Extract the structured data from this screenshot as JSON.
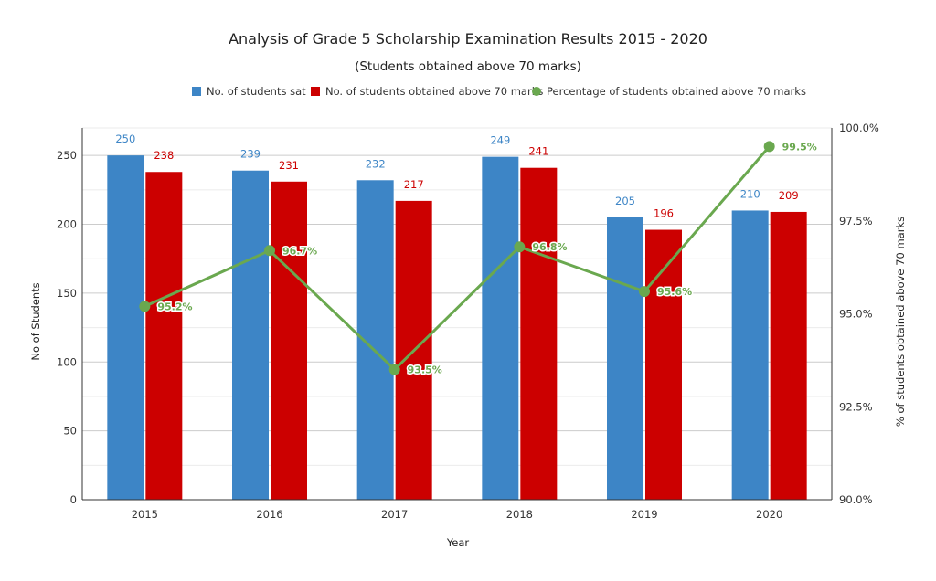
{
  "chart_data": {
    "type": "bar",
    "title": "Analysis of Grade 5 Scholarship Examination Results 2015 - 2020",
    "subtitle": "(Students obtained above 70 marks)",
    "xlabel": "Year",
    "ylabel": "No of Students",
    "y2label": "% of students obtained above 70 marks",
    "categories": [
      "2015",
      "2016",
      "2017",
      "2018",
      "2019",
      "2020"
    ],
    "ylim": [
      0,
      270
    ],
    "y_ticks": [
      "0",
      "50",
      "100",
      "150",
      "200",
      "250"
    ],
    "y2lim": [
      90.0,
      100.0
    ],
    "y2_ticks": [
      "90.0%",
      "92.5%",
      "95.0%",
      "97.5%",
      "100.0%"
    ],
    "grid": true,
    "legend_position": "top",
    "series": [
      {
        "name": "No. of students sat",
        "type": "bar",
        "axis": "left",
        "color": "#3d85c6",
        "values": [
          250,
          239,
          232,
          249,
          205,
          210
        ],
        "labels": [
          "250",
          "239",
          "232",
          "249",
          "205",
          "210"
        ]
      },
      {
        "name": "No. of students obtained above 70 marks",
        "type": "bar",
        "axis": "left",
        "color": "#cc0000",
        "values": [
          238,
          231,
          217,
          241,
          196,
          209
        ],
        "labels": [
          "238",
          "231",
          "217",
          "241",
          "196",
          "209"
        ]
      },
      {
        "name": "Percentage of students obtained above 70 marks",
        "type": "line",
        "axis": "right",
        "color": "#6aa84f",
        "values": [
          95.2,
          96.7,
          93.5,
          96.8,
          95.6,
          99.5
        ],
        "labels": [
          "95.2%",
          "96.7%",
          "93.5%",
          "96.8%",
          "95.6%",
          "99.5%"
        ]
      }
    ]
  }
}
